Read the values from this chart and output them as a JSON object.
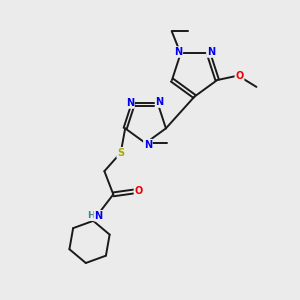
{
  "background_color": "#ebebeb",
  "bond_color": "#1a1a1a",
  "atom_colors": {
    "N": "#0000ee",
    "O": "#ee0000",
    "S": "#aaaa00",
    "H": "#3a8a8a",
    "C": "#1a1a1a"
  },
  "figsize": [
    3.0,
    3.0
  ],
  "dpi": 100,
  "lw": 1.4,
  "fs": 7.0
}
